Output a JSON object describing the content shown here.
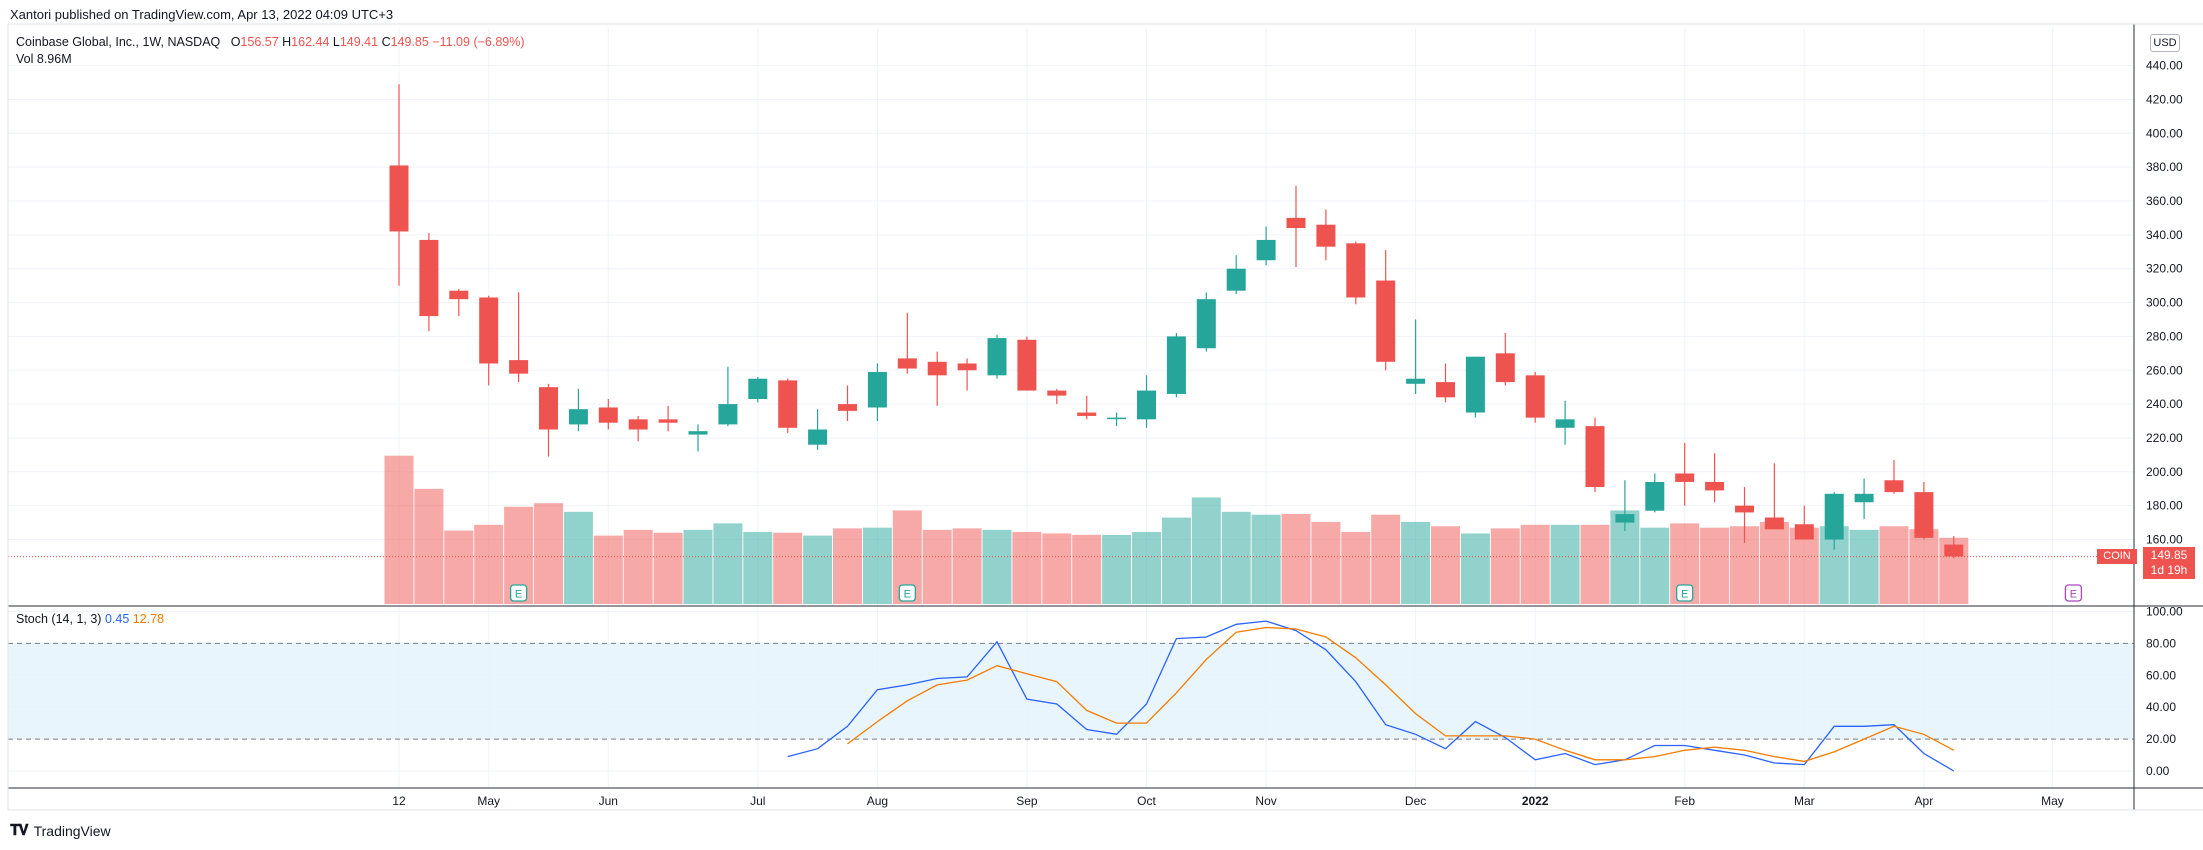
{
  "header": {
    "publisher": "Xantori published on TradingView.com, Apr 13, 2022 04:09 UTC+3",
    "symbol": "Coinbase Global, Inc., 1W, NASDAQ",
    "ohlc": {
      "o_label": "O",
      "o": "156.57",
      "h_label": "H",
      "h": "162.44",
      "l_label": "L",
      "l": "149.41",
      "c_label": "C",
      "c": "149.85",
      "chg": "−11.09 (−6.89%)"
    },
    "vol_label": "Vol",
    "vol_value": "8.96M"
  },
  "stoch": {
    "label": "Stoch (14, 1, 3)",
    "k": "0.45",
    "d": "12.78"
  },
  "price_axis": {
    "currency": "USD",
    "last_price": "149.85",
    "countdown": "1d 19h",
    "symbol_tag": "COIN"
  },
  "footer": {
    "brand": "TradingView"
  },
  "colors": {
    "up": "#26a69a",
    "down": "#ef5350",
    "vol_up": "#26a69a",
    "vol_down": "#ef5350",
    "k": "#2962ff",
    "d": "#f57c00",
    "band": "#e3f2fd",
    "earnings": "#26a69a",
    "earnings_next": "#ab47bc"
  },
  "chart_data": {
    "type": "candlestick",
    "x_labels": [
      {
        "i": 0,
        "label": "12"
      },
      {
        "i": 3,
        "label": "May"
      },
      {
        "i": 7,
        "label": "Jun"
      },
      {
        "i": 12,
        "label": "Jul"
      },
      {
        "i": 16,
        "label": "Aug"
      },
      {
        "i": 21,
        "label": "Sep"
      },
      {
        "i": 25,
        "label": "Oct"
      },
      {
        "i": 29,
        "label": "Nov"
      },
      {
        "i": 34,
        "label": "Dec"
      },
      {
        "i": 38,
        "label": "2022"
      },
      {
        "i": 43,
        "label": "Feb"
      },
      {
        "i": 47,
        "label": "Mar"
      },
      {
        "i": 51,
        "label": "Apr"
      },
      {
        "i": 55.3,
        "label": "May"
      }
    ],
    "price_ylim": [
      140,
      440
    ],
    "price_ticks": [
      "160.00",
      "180.00",
      "200.00",
      "220.00",
      "240.00",
      "260.00",
      "280.00",
      "300.00",
      "320.00",
      "340.00",
      "360.00",
      "380.00",
      "400.00",
      "420.00",
      "440.00"
    ],
    "stoch_ylim": [
      0,
      100
    ],
    "stoch_ticks": [
      "0.00",
      "20.00",
      "40.00",
      "60.00",
      "80.00",
      "100.00"
    ],
    "stoch_levels": [
      20,
      80
    ],
    "candles": [
      {
        "o": 381,
        "h": 429,
        "l": 310,
        "c": 342,
        "v": 206
      },
      {
        "o": 337,
        "h": 341,
        "l": 283,
        "c": 292,
        "v": 160
      },
      {
        "o": 307,
        "h": 308,
        "l": 292,
        "c": 302,
        "v": 102
      },
      {
        "o": 303,
        "h": 304,
        "l": 251,
        "c": 264,
        "v": 110
      },
      {
        "o": 266,
        "h": 306,
        "l": 253,
        "c": 258,
        "v": 135
      },
      {
        "o": 250,
        "h": 252,
        "l": 209,
        "c": 225,
        "v": 140
      },
      {
        "o": 228,
        "h": 249,
        "l": 224,
        "c": 237,
        "v": 128
      },
      {
        "o": 238,
        "h": 243,
        "l": 225,
        "c": 229,
        "v": 95
      },
      {
        "o": 231,
        "h": 233,
        "l": 218,
        "c": 225,
        "v": 103
      },
      {
        "o": 231,
        "h": 239,
        "l": 224,
        "c": 229,
        "v": 99
      },
      {
        "o": 222,
        "h": 228,
        "l": 212,
        "c": 224,
        "v": 103
      },
      {
        "o": 228,
        "h": 262,
        "l": 227,
        "c": 240,
        "v": 112
      },
      {
        "o": 243,
        "h": 256,
        "l": 241,
        "c": 255,
        "v": 100
      },
      {
        "o": 254,
        "h": 255,
        "l": 223,
        "c": 226,
        "v": 99
      },
      {
        "o": 216,
        "h": 237,
        "l": 213,
        "c": 225,
        "v": 95
      },
      {
        "o": 240,
        "h": 251,
        "l": 230,
        "c": 236,
        "v": 105
      },
      {
        "o": 238,
        "h": 264,
        "l": 230,
        "c": 259,
        "v": 106
      },
      {
        "o": 267,
        "h": 294,
        "l": 258,
        "c": 261,
        "v": 130
      },
      {
        "o": 265,
        "h": 271,
        "l": 239,
        "c": 257,
        "v": 103
      },
      {
        "o": 264,
        "h": 267,
        "l": 248,
        "c": 260,
        "v": 105
      },
      {
        "o": 257,
        "h": 281,
        "l": 255,
        "c": 279,
        "v": 103
      },
      {
        "o": 278,
        "h": 280,
        "l": 249,
        "c": 248,
        "v": 100
      },
      {
        "o": 248,
        "h": 249,
        "l": 240,
        "c": 245,
        "v": 98
      },
      {
        "o": 235,
        "h": 245,
        "l": 231,
        "c": 233,
        "v": 96
      },
      {
        "o": 232,
        "h": 235,
        "l": 227,
        "c": 232,
        "v": 96
      },
      {
        "o": 231,
        "h": 257,
        "l": 226,
        "c": 248,
        "v": 100
      },
      {
        "o": 246,
        "h": 282,
        "l": 244,
        "c": 280,
        "v": 120
      },
      {
        "o": 273,
        "h": 306,
        "l": 271,
        "c": 302,
        "v": 148
      },
      {
        "o": 307,
        "h": 328,
        "l": 305,
        "c": 320,
        "v": 128
      },
      {
        "o": 325,
        "h": 345,
        "l": 322,
        "c": 337,
        "v": 124
      },
      {
        "o": 350,
        "h": 369,
        "l": 321,
        "c": 344,
        "v": 125
      },
      {
        "o": 346,
        "h": 355,
        "l": 325,
        "c": 333,
        "v": 114
      },
      {
        "o": 335,
        "h": 336,
        "l": 299,
        "c": 303,
        "v": 100
      },
      {
        "o": 313,
        "h": 331,
        "l": 260,
        "c": 265,
        "v": 124
      },
      {
        "o": 252,
        "h": 290,
        "l": 246,
        "c": 255,
        "v": 114
      },
      {
        "o": 253,
        "h": 264,
        "l": 241,
        "c": 244,
        "v": 108
      },
      {
        "o": 235,
        "h": 268,
        "l": 232,
        "c": 268,
        "v": 98
      },
      {
        "o": 270,
        "h": 282,
        "l": 251,
        "c": 253,
        "v": 105
      },
      {
        "o": 257,
        "h": 259,
        "l": 229,
        "c": 232,
        "v": 110
      },
      {
        "o": 226,
        "h": 242,
        "l": 216,
        "c": 231,
        "v": 110
      },
      {
        "o": 227,
        "h": 232,
        "l": 188,
        "c": 191,
        "v": 110
      },
      {
        "o": 170,
        "h": 195,
        "l": 165,
        "c": 175,
        "v": 130
      },
      {
        "o": 177,
        "h": 199,
        "l": 176,
        "c": 194,
        "v": 106
      },
      {
        "o": 199,
        "h": 217,
        "l": 180,
        "c": 194,
        "v": 112
      },
      {
        "o": 194,
        "h": 211,
        "l": 182,
        "c": 189,
        "v": 106
      },
      {
        "o": 180,
        "h": 191,
        "l": 158,
        "c": 176,
        "v": 108
      },
      {
        "o": 173,
        "h": 205,
        "l": 167,
        "c": 166,
        "v": 114
      },
      {
        "o": 169,
        "h": 180,
        "l": 160,
        "c": 160,
        "v": 106
      },
      {
        "o": 160,
        "h": 188,
        "l": 154,
        "c": 187,
        "v": 108
      },
      {
        "o": 182,
        "h": 196,
        "l": 172,
        "c": 187,
        "v": 103
      },
      {
        "o": 195,
        "h": 207,
        "l": 187,
        "c": 188,
        "v": 108
      },
      {
        "o": 188,
        "h": 194,
        "l": 160,
        "c": 161,
        "v": 104
      },
      {
        "o": 157,
        "h": 162,
        "l": 149,
        "c": 150,
        "v": 92
      }
    ],
    "earnings_markers": [
      4,
      17,
      43
    ],
    "next_earnings_index": 56,
    "stoch_k": [
      null,
      null,
      null,
      null,
      null,
      null,
      null,
      null,
      null,
      null,
      null,
      null,
      null,
      9,
      14,
      28,
      51,
      54,
      58,
      59,
      81,
      45,
      42,
      26,
      23,
      42,
      83,
      84,
      92,
      94,
      88,
      76,
      56,
      29,
      23,
      14,
      31,
      21,
      7,
      11,
      4,
      7,
      16,
      16,
      13,
      10,
      5,
      4,
      28,
      28,
      29,
      11,
      0
    ],
    "stoch_d": [
      null,
      null,
      null,
      null,
      null,
      null,
      null,
      null,
      null,
      null,
      null,
      null,
      null,
      null,
      null,
      17,
      31,
      44,
      54,
      57,
      66,
      61,
      56,
      38,
      30,
      30,
      49,
      70,
      87,
      90,
      89,
      84,
      71,
      54,
      36,
      22,
      22,
      22,
      20,
      13,
      7,
      7,
      9,
      13,
      15,
      13,
      9,
      6,
      12,
      20,
      28,
      23,
      13
    ]
  }
}
